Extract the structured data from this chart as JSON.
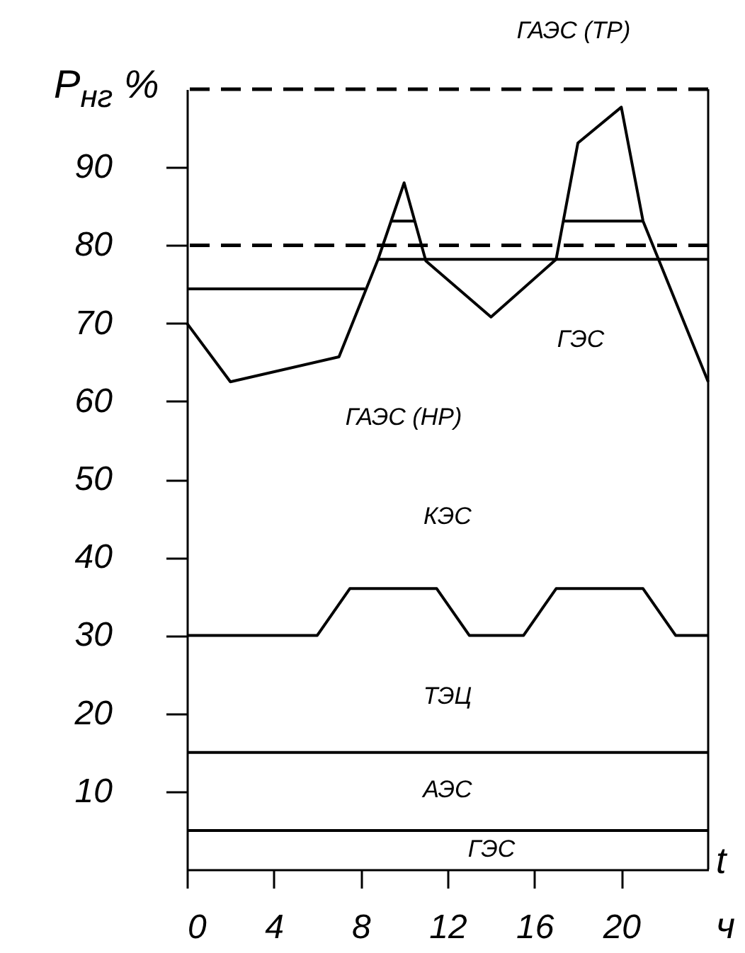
{
  "chart_data": {
    "type": "line",
    "xlabel": "t ч",
    "ylabel": "P$_{нг}$ %",
    "xlim": [
      0,
      24
    ],
    "xticks": [
      0,
      4,
      8,
      12,
      16,
      20
    ],
    "ylim": [
      0,
      100
    ],
    "yticks": [
      10,
      20,
      30,
      40,
      50,
      60,
      70,
      80,
      90
    ],
    "series": [
      {
        "color": "#000000",
        "x": [
          0,
          2,
          7,
          8.8,
          10,
          11,
          14,
          17,
          18,
          20,
          21,
          24
        ],
        "values": [
          70,
          62.5,
          65.7,
          78.2,
          88,
          78,
          70.8,
          78.2,
          93.1,
          97.7,
          83.1,
          62.5
        ]
      },
      {
        "color": "#000000",
        "x": [
          0,
          6,
          7.5,
          11.5,
          13,
          15.5,
          17,
          21,
          22.5,
          24
        ],
        "values": [
          30,
          30,
          36,
          36,
          30,
          30,
          36,
          36,
          30,
          30
        ]
      },
      {
        "color": "#000000",
        "x": [
          0,
          24
        ],
        "values": [
          15,
          15
        ]
      },
      {
        "color": "#000000",
        "x": [
          0,
          24
        ],
        "values": [
          5,
          5
        ]
      },
      {
        "color": "#000000",
        "x": [
          0,
          8.2
        ],
        "values": [
          74.4,
          74.4
        ]
      },
      {
        "color": "#000000",
        "x": [
          8.8,
          24
        ],
        "values": [
          78.2,
          78.2
        ]
      },
      {
        "color": "#000000",
        "x": [
          9.4,
          10.5
        ],
        "values": [
          83.1,
          83.1
        ]
      },
      {
        "color": "#000000",
        "x": [
          17.33,
          21
        ],
        "values": [
          83.1,
          83.1
        ]
      }
    ],
    "ref_lines": [
      {
        "axis": "y",
        "value": 80,
        "line_style": "dashed",
        "color": "#000000"
      },
      {
        "axis": "y",
        "value": 100,
        "line_style": "dashed",
        "color": "#000000"
      }
    ],
    "annotations": [
      "ГАЭС (ТР)",
      "ГЭС",
      "ГАЭС (НР)",
      "КЭС",
      "ТЭЦ",
      "АЭС",
      "ГЭС"
    ]
  }
}
